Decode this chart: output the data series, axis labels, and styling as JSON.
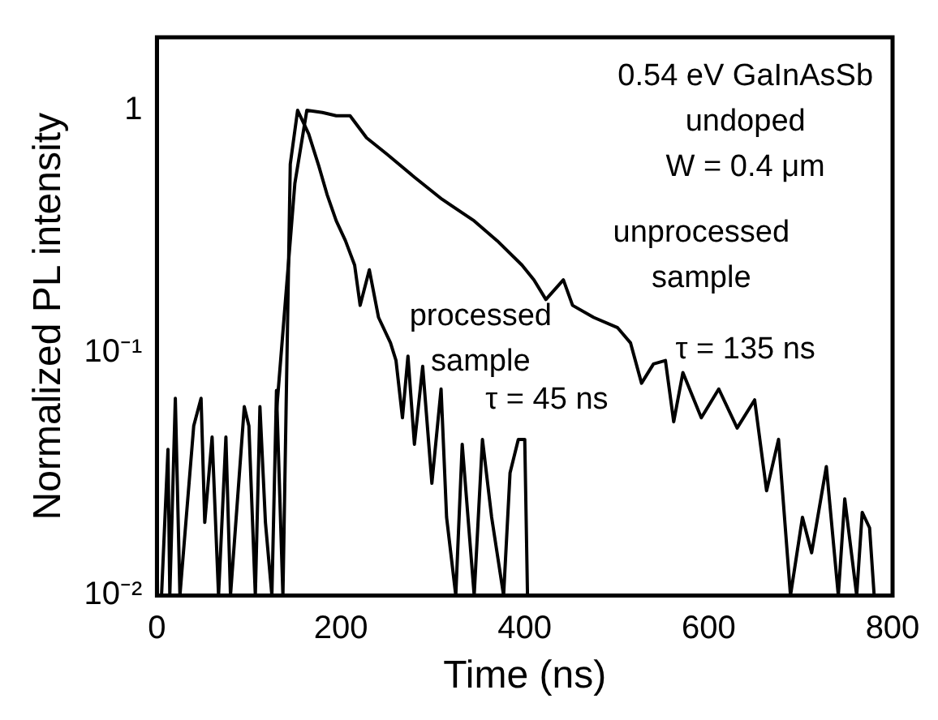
{
  "chart_data": {
    "type": "line",
    "xlabel": "Time (ns)",
    "ylabel": "Normalized PL intensity",
    "log": "y",
    "grid": false,
    "legend": false,
    "xlim": [
      0,
      800
    ],
    "xticks": [
      0,
      200,
      400,
      600,
      800
    ],
    "ylim": [
      0.01,
      2
    ],
    "yticks": [
      {
        "value": 0.01,
        "label": "10⁻²"
      },
      {
        "value": 0.1,
        "label": "10⁻¹"
      },
      {
        "value": 1,
        "label": "1"
      }
    ],
    "series": [
      {
        "color": "#000000",
        "x": [
          130,
          150,
          163,
          180,
          195,
          210,
          228,
          250,
          280,
          310,
          345,
          370,
          397,
          410,
          423,
          442,
          452,
          475,
          501,
          515,
          527,
          540,
          553,
          562,
          572,
          592,
          611,
          631,
          650,
          663,
          676,
          689,
          702,
          712,
          728,
          741,
          748,
          761,
          767,
          775,
          780
        ],
        "values": [
          0.057,
          0.5,
          1,
          0.98,
          0.95,
          0.95,
          0.77,
          0.66,
          0.53,
          0.43,
          0.35,
          0.29,
          0.23,
          0.2,
          0.166,
          0.2,
          0.157,
          0.14,
          0.127,
          0.11,
          0.075,
          0.09,
          0.093,
          0.052,
          0.083,
          0.054,
          0.071,
          0.049,
          0.064,
          0.027,
          0.044,
          0.01,
          0.021,
          0.015,
          0.034,
          0.01,
          0.025,
          0.01,
          0.022,
          0.019,
          0.01
        ]
      },
      {
        "color": "#000000",
        "x": [
          5,
          12,
          14,
          20,
          25,
          40,
          48,
          52,
          60,
          67,
          75,
          80,
          95,
          100,
          107,
          112,
          118,
          125,
          130,
          137,
          145,
          153,
          165,
          176,
          185,
          195,
          205,
          215,
          221,
          231,
          241,
          254,
          260,
          267,
          273,
          280,
          289,
          299,
          309,
          315,
          325,
          332,
          345,
          354,
          364,
          377,
          384,
          393,
          400,
          403
        ],
        "values": [
          0.01,
          0.04,
          0.01,
          0.065,
          0.01,
          0.05,
          0.065,
          0.02,
          0.045,
          0.01,
          0.045,
          0.01,
          0.06,
          0.05,
          0.01,
          0.06,
          0.02,
          0.01,
          0.07,
          0.01,
          0.6,
          1,
          0.8,
          0.59,
          0.45,
          0.35,
          0.29,
          0.23,
          0.157,
          0.22,
          0.14,
          0.11,
          0.093,
          0.054,
          0.097,
          0.042,
          0.088,
          0.029,
          0.071,
          0.021,
          0.01,
          0.042,
          0.01,
          0.044,
          0.021,
          0.01,
          0.032,
          0.044,
          0.044,
          0.01
        ]
      }
    ],
    "annotations": [
      "0.54 eV GaInAsSb\nundoped\nW = 0.4 μm",
      "unprocessed\nsample",
      "τ = 135 ns",
      "processed\nsample",
      "τ = 45 ns"
    ]
  }
}
